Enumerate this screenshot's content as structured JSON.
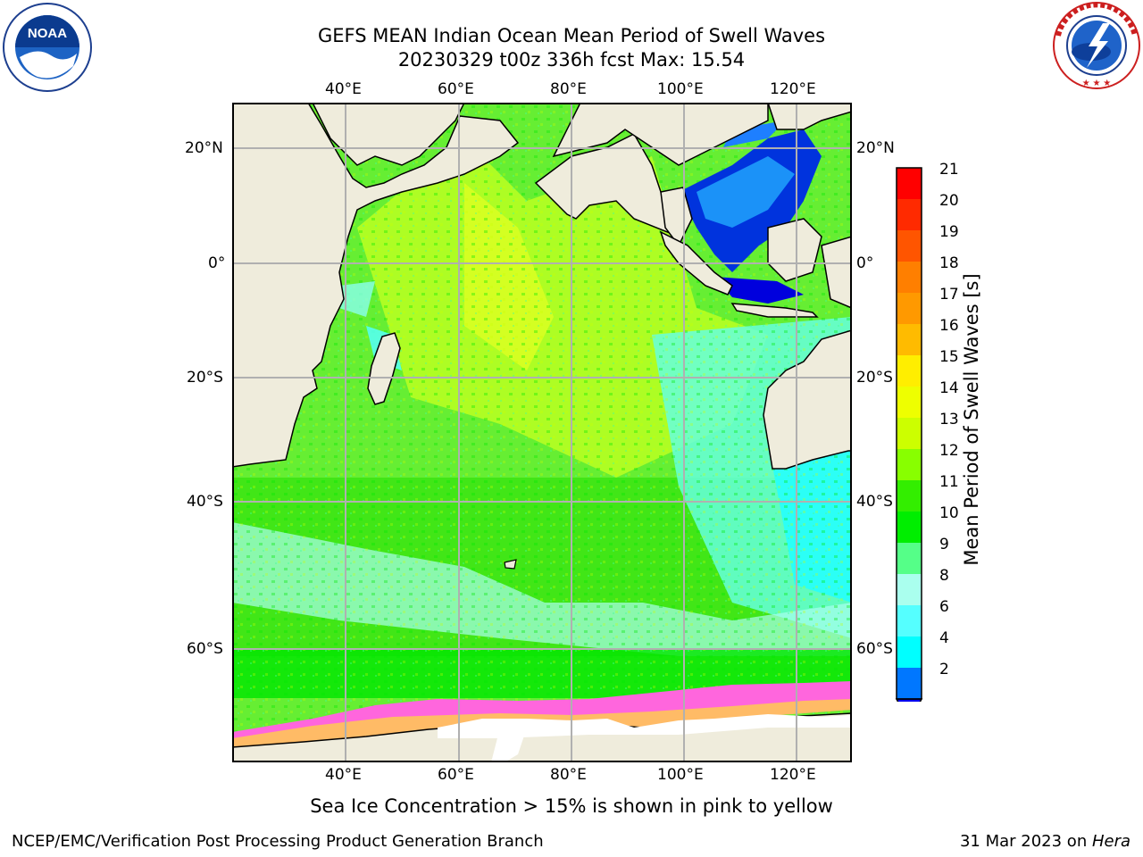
{
  "title": {
    "line1": "GEFS MEAN Indian Ocean Mean Period of Swell Waves",
    "line2": "20230329 t00z 336h fcst   Max: 15.54"
  },
  "logos": {
    "noaa": {
      "text": "NOAA",
      "ring_text": "NATIONAL OCEANIC AND ATMOSPHERIC ADMINISTRATION · U.S. DEPARTMENT OF COMMERCE"
    },
    "nws": {
      "ring_text": "NATIONAL WEATHER SERVICE"
    }
  },
  "map": {
    "lon_labels": [
      "40°E",
      "60°E",
      "80°E",
      "100°E",
      "120°E"
    ],
    "lat_labels_left": [
      "20°N",
      "0°",
      "20°S",
      "40°S",
      "60°S"
    ],
    "lat_labels_right": [
      "20°N",
      "0°",
      "20°S",
      "40°S",
      "60°S"
    ],
    "colors": {
      "land": "#efecdc",
      "grid": "#b0b0b0"
    }
  },
  "colorbar": {
    "label": "Mean Period of Swell Waves [s]",
    "ticks": [
      "21",
      "20",
      "19",
      "18",
      "17",
      "16",
      "15",
      "14",
      "13",
      "12",
      "11",
      "10",
      "9",
      "8",
      "6",
      "4",
      "2"
    ],
    "bins": [
      {
        "color": "#ff0000"
      },
      {
        "color": "#ff2a00"
      },
      {
        "color": "#ff5500"
      },
      {
        "color": "#ff7f00"
      },
      {
        "color": "#ff9900"
      },
      {
        "color": "#ffbb00"
      },
      {
        "color": "#ffee00"
      },
      {
        "color": "#eeff00"
      },
      {
        "color": "#ccff00"
      },
      {
        "color": "#88ff00"
      },
      {
        "color": "#33ee00"
      },
      {
        "color": "#00ee00"
      },
      {
        "color": "#55ff88"
      },
      {
        "color": "#aaffee"
      },
      {
        "color": "#55ffff"
      },
      {
        "color": "#00ffff"
      },
      {
        "color": "#0077ff"
      }
    ],
    "under_color": "#0000ee"
  },
  "note": "Sea Ice Concentration > 15% is shown in pink to yellow",
  "footer": {
    "left": "NCEP/EMC/Verification Post Processing Product Generation Branch",
    "date": "31 Mar 2023 on ",
    "machine": "Hera"
  }
}
